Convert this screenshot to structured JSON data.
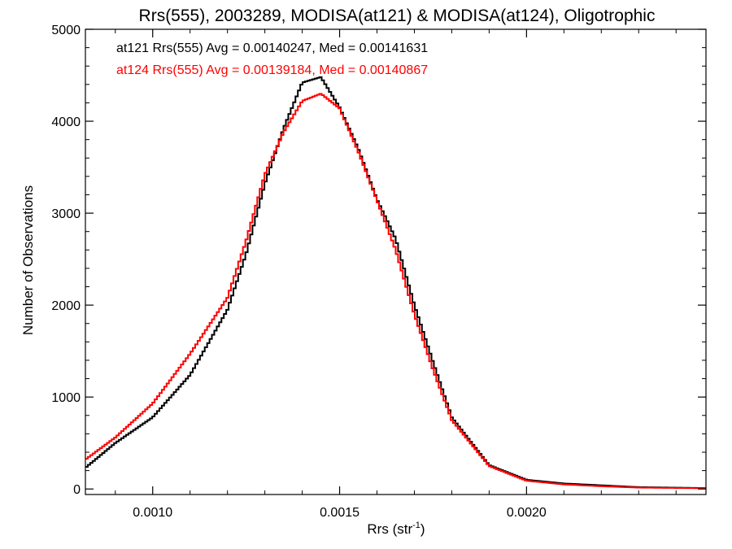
{
  "chart_data": {
    "type": "line",
    "title": "Rrs(555), 2003289, MODISA(at121) & MODISA(at124), Oligotrophic",
    "xlabel": "Rrs (str",
    "xlabel_sup": "-1",
    "xlabel_end": ")",
    "ylabel": "Number of Observations",
    "xlim": [
      0.00082,
      0.00248
    ],
    "ylim": [
      -60,
      5000
    ],
    "xticks": [
      0.001,
      0.0015,
      0.002
    ],
    "xtick_labels": [
      "0.0010",
      "0.0015",
      "0.0020"
    ],
    "yticks": [
      0,
      1000,
      2000,
      3000,
      4000,
      5000
    ],
    "ytick_labels": [
      "0",
      "1000",
      "2000",
      "3000",
      "4000",
      "5000"
    ],
    "grid": false,
    "legend_position": "top-left",
    "x": [
      0.00082,
      0.0009,
      0.001,
      0.0011,
      0.0012,
      0.00125,
      0.0013,
      0.00135,
      0.0014,
      0.00145,
      0.0015,
      0.00155,
      0.0016,
      0.00165,
      0.0017,
      0.00175,
      0.0018,
      0.0019,
      0.002,
      0.0021,
      0.0022,
      0.0023,
      0.00248
    ],
    "series": [
      {
        "name": "at121",
        "color": "#000000",
        "values": [
          230,
          500,
          780,
          1240,
          1950,
          2560,
          3320,
          3920,
          4420,
          4480,
          4150,
          3700,
          3150,
          2720,
          2000,
          1380,
          780,
          260,
          100,
          60,
          40,
          20,
          10
        ],
        "stat_label": "at121 Rrs(555) Avg = 0.00140247, Med = 0.00141631"
      },
      {
        "name": "at124",
        "color": "#ff0000",
        "values": [
          320,
          560,
          930,
          1470,
          2080,
          2700,
          3420,
          3880,
          4220,
          4300,
          4140,
          3670,
          3140,
          2600,
          1900,
          1300,
          750,
          250,
          90,
          50,
          30,
          15,
          8
        ],
        "stat_label": "at124 Rrs(555) Avg = 0.00139184, Med = 0.00140867"
      }
    ]
  }
}
